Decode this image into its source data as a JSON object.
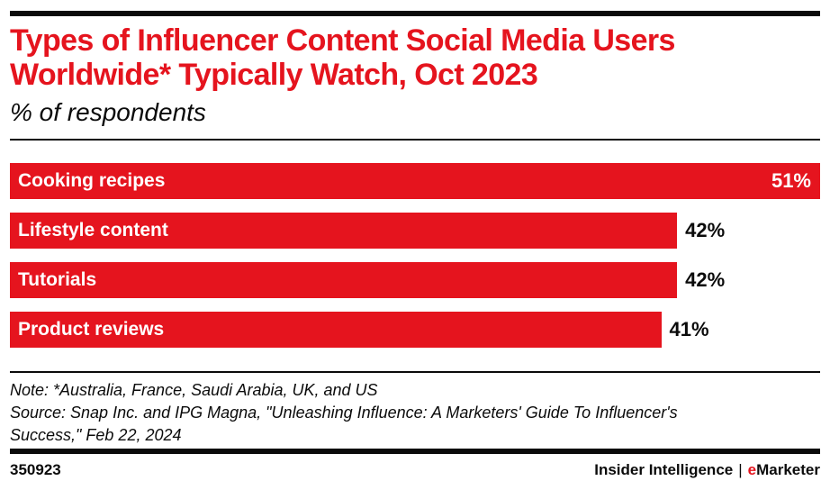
{
  "header": {
    "title_lines": [
      "Types of Influencer Content Social Media Users",
      "Worldwide* Typically Watch, Oct 2023"
    ],
    "subtitle": "% of respondents"
  },
  "chart_data": {
    "type": "bar",
    "orientation": "horizontal",
    "title": "Types of Influencer Content Social Media Users Worldwide* Typically Watch, Oct 2023",
    "subtitle": "% of respondents",
    "categories": [
      "Cooking recipes",
      "Lifestyle content",
      "Tutorials",
      "Product reviews"
    ],
    "values": [
      51,
      42,
      42,
      41
    ],
    "value_suffix": "%",
    "xlabel": "",
    "ylabel": "",
    "xlim": [
      0,
      51
    ],
    "grid": false,
    "legend": false,
    "bar_color": "#e5141e",
    "category_label_position": "inside-left",
    "value_label_rule": "inside bar when bar is at max width, otherwise outside right"
  },
  "notes": {
    "lines": [
      "Note: *Australia, France, Saudi Arabia, UK, and US",
      "Source: Snap Inc. and IPG Magna, \"Unleashing Influence: A Marketers' Guide To Influencer's",
      "Success,\" Feb 22, 2024"
    ]
  },
  "footer": {
    "chart_id": "350923",
    "brand_left": "Insider Intelligence",
    "separator": "|",
    "brand_e": "e",
    "brand_rest": "Marketer"
  },
  "colors": {
    "brand_red": "#e5141e",
    "rule_black": "#0b0b0b",
    "bar_text_white": "#ffffff"
  }
}
